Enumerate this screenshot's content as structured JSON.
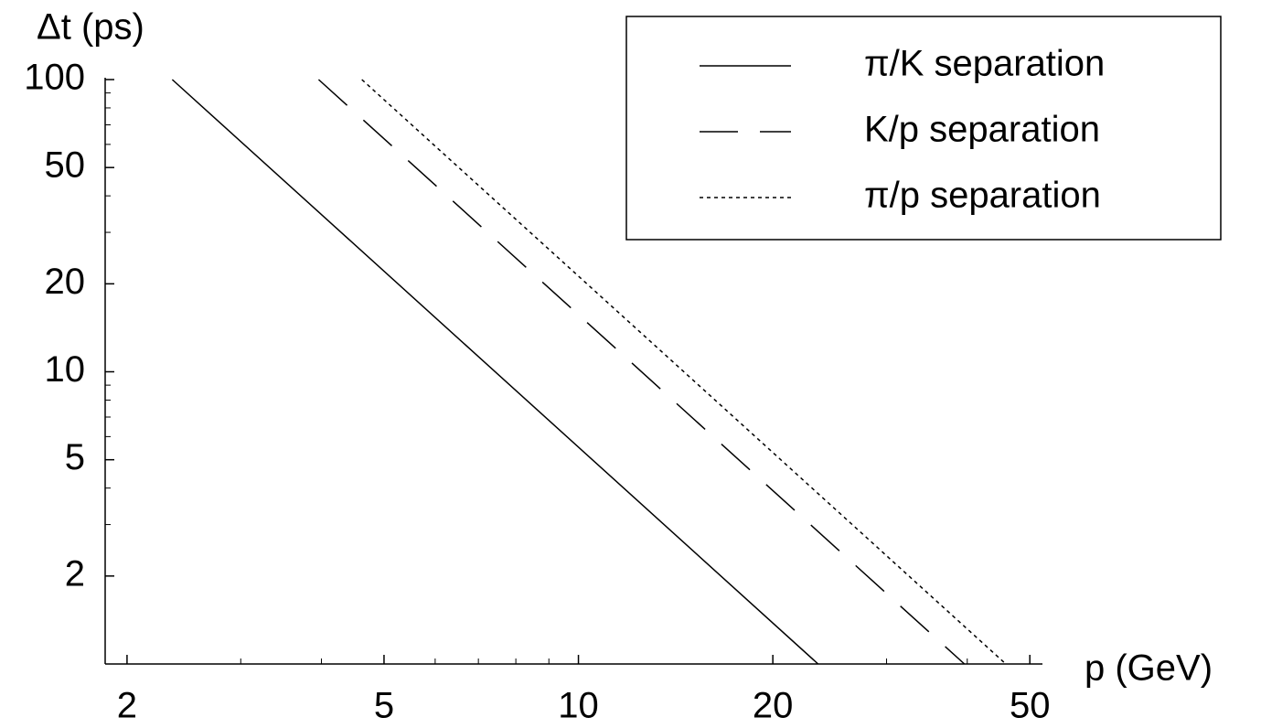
{
  "chart_data": {
    "type": "line",
    "ylabel": "Δt (ps)",
    "xlabel": "p (GeV)",
    "xscale": "log",
    "yscale": "log",
    "xlim": [
      1.85,
      52.3
    ],
    "ylim": [
      1,
      100
    ],
    "xticks": [
      2,
      5,
      10,
      20,
      50
    ],
    "yticks": [
      2,
      5,
      10,
      20,
      50,
      100
    ],
    "xminorticks": [
      3,
      4,
      6,
      7,
      8,
      9,
      30,
      40
    ],
    "yminorticks": [
      3,
      4,
      6,
      7,
      8,
      9,
      30,
      40,
      60,
      70,
      80,
      90
    ],
    "legend": "top-right",
    "series": [
      {
        "name": "π/K separation",
        "color": "#000000",
        "dash": "solid",
        "x": [
          2.35,
          23.5
        ],
        "values": [
          100,
          1
        ]
      },
      {
        "name": "K/p separation",
        "color": "#000000",
        "dash": "long-dash",
        "x": [
          3.96,
          39.6
        ],
        "values": [
          100,
          1
        ]
      },
      {
        "name": "π/p separation",
        "color": "#000000",
        "dash": "dotted",
        "x": [
          4.62,
          45.9
        ],
        "values": [
          100,
          1
        ]
      }
    ]
  }
}
